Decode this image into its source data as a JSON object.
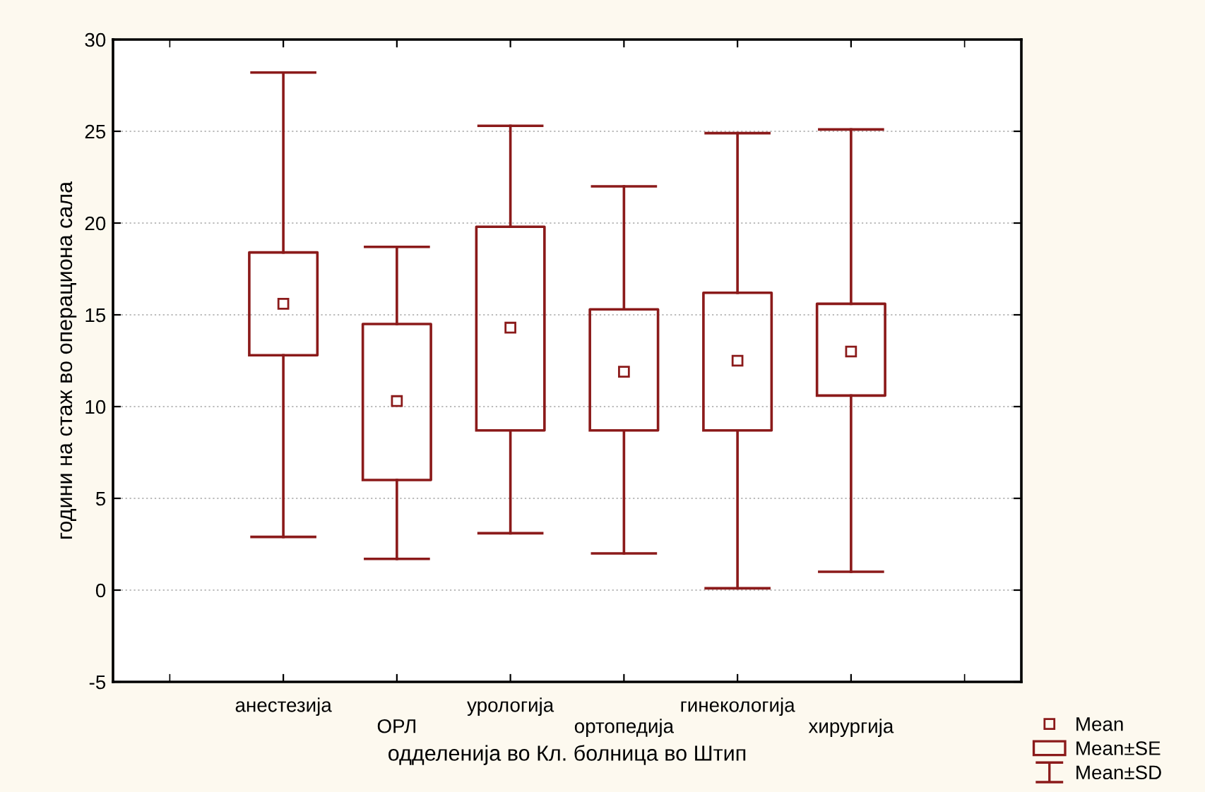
{
  "chart_data": {
    "type": "box",
    "xlabel": "одделенија во Кл. болница во Штип",
    "ylabel": "години на стаж во операциона сала",
    "categories": [
      "анестезија",
      "ОРЛ",
      "урологија",
      "ортопедија",
      "гинекологија",
      "хирургија"
    ],
    "series": [
      {
        "name": "Mean±SE",
        "color": "#8b1a1a",
        "boxes": [
          {
            "low": 2.9,
            "q1": 12.8,
            "median": 15.6,
            "q3": 18.4,
            "high": 28.2
          },
          {
            "low": 1.7,
            "q1": 6.0,
            "median": 10.3,
            "q3": 14.5,
            "high": 18.7
          },
          {
            "low": 3.1,
            "q1": 8.7,
            "median": 14.3,
            "q3": 19.8,
            "high": 25.3
          },
          {
            "low": 2.0,
            "q1": 8.7,
            "median": 11.9,
            "q3": 15.3,
            "high": 22.0
          },
          {
            "low": 0.1,
            "q1": 8.7,
            "median": 12.5,
            "q3": 16.2,
            "high": 24.9
          },
          {
            "low": 1.0,
            "q1": 10.6,
            "median": 13.0,
            "q3": 15.6,
            "high": 25.1
          }
        ]
      }
    ],
    "annotations": [
      "Mean",
      "Mean±SD"
    ],
    "ylim": [
      -5,
      30
    ],
    "yticks": [
      -5,
      0,
      5,
      10,
      15,
      20,
      25,
      30
    ],
    "grid": "y",
    "legend": "bottom right",
    "marker": "square"
  }
}
